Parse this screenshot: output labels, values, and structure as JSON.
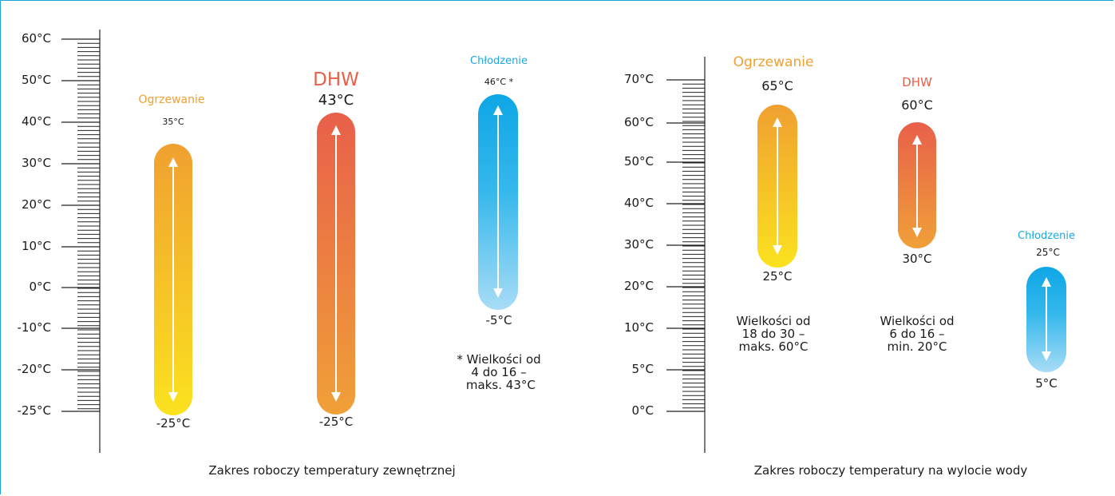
{
  "colors": {
    "frame": "#1aa3d9",
    "heating": "#f0a030",
    "dhw": "#e8604a",
    "cooling": "#1aa8e0"
  },
  "outdoor": {
    "axis_labels": [
      "60°C",
      "50°C",
      "40°C",
      "30°C",
      "20°C",
      "10°C",
      "0°C",
      "-10°C",
      "-20°C",
      "-25°C"
    ],
    "heating": {
      "title": "Ogrzewanie",
      "max": "35°C",
      "min": "-25°C"
    },
    "dhw": {
      "title": "DHW",
      "max": "43°C",
      "min": "-25°C"
    },
    "cooling": {
      "title": "Chłodzenie",
      "max": "46°C *",
      "min": "-5°C"
    },
    "note": "* Wielkości od\n4 do 16 –\n maks. 43°C",
    "caption": "Zakres roboczy temperatury zewnętrznej"
  },
  "water": {
    "axis_labels": [
      "70°C",
      "60°C",
      "50°C",
      "40°C",
      "30°C",
      "20°C",
      "10°C",
      "5°C",
      "0°C"
    ],
    "heating": {
      "title": "Ogrzewanie",
      "max": "65°C",
      "min": "25°C",
      "note": "Wielkości od\n18 do 30 –\nmaks. 60°C"
    },
    "dhw": {
      "title": "DHW",
      "max": "60°C",
      "min": "30°C",
      "note": "Wielkości od\n6 do 16 –\nmin. 20°C"
    },
    "cooling": {
      "title": "Chłodzenie",
      "max": "25°C",
      "min": "5°C"
    },
    "caption": "Zakres roboczy temperatury na wylocie wody"
  }
}
